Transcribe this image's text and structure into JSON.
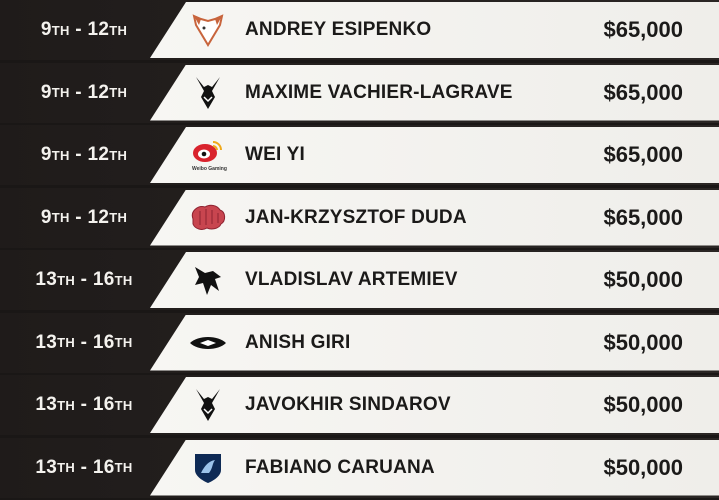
{
  "rows": [
    {
      "place_a": "9",
      "sfx_a": "TH",
      "sep": " - ",
      "place_b": "12",
      "sfx_b": "TH",
      "player": "ANDREY ESIPENKO",
      "prize": "$65,000",
      "logo": "virtus-pro-bear-icon",
      "logo_color": "#c8643c"
    },
    {
      "place_a": "9",
      "sfx_a": "TH",
      "sep": " - ",
      "place_b": "12",
      "sfx_b": "TH",
      "player": "MAXIME VACHIER-LAGRAVE",
      "prize": "$65,000",
      "logo": "team-vitality-bee-icon",
      "logo_color": "#111111"
    },
    {
      "place_a": "9",
      "sfx_a": "TH",
      "sep": " - ",
      "place_b": "12",
      "sfx_b": "TH",
      "player": "WEI YI",
      "prize": "$65,000",
      "logo": "weibo-gaming-icon",
      "logo_color": "#d9232d",
      "logo_text": "Weibo Gaming"
    },
    {
      "place_a": "9",
      "sfx_a": "TH",
      "sep": " - ",
      "place_b": "12",
      "sfx_b": "TH",
      "player": "JAN-KRZYSZTOF DUDA",
      "prize": "$65,000",
      "logo": "brain-icon",
      "logo_color": "#c8454f"
    },
    {
      "place_a": "13",
      "sfx_a": "TH",
      "sep": " - ",
      "place_b": "16",
      "sfx_b": "TH",
      "player": "VLADISLAV ARTEMIEV",
      "prize": "$50,000",
      "logo": "team-spirit-dragon-icon",
      "logo_color": "#111111"
    },
    {
      "place_a": "13",
      "sfx_a": "TH",
      "sep": " - ",
      "place_b": "16",
      "sfx_b": "TH",
      "player": "ANISH GIRI",
      "prize": "$50,000",
      "logo": "team-secret-icon",
      "logo_color": "#111111"
    },
    {
      "place_a": "13",
      "sfx_a": "TH",
      "sep": " - ",
      "place_b": "16",
      "sfx_b": "TH",
      "player": "JAVOKHIR SINDAROV",
      "prize": "$50,000",
      "logo": "team-vitality-bee-icon",
      "logo_color": "#111111"
    },
    {
      "place_a": "13",
      "sfx_a": "TH",
      "sep": " - ",
      "place_b": "16",
      "sfx_b": "TH",
      "player": "FABIANO CARUANA",
      "prize": "$50,000",
      "logo": "team-liquid-horse-icon",
      "logo_color": "#0e2a55"
    }
  ]
}
